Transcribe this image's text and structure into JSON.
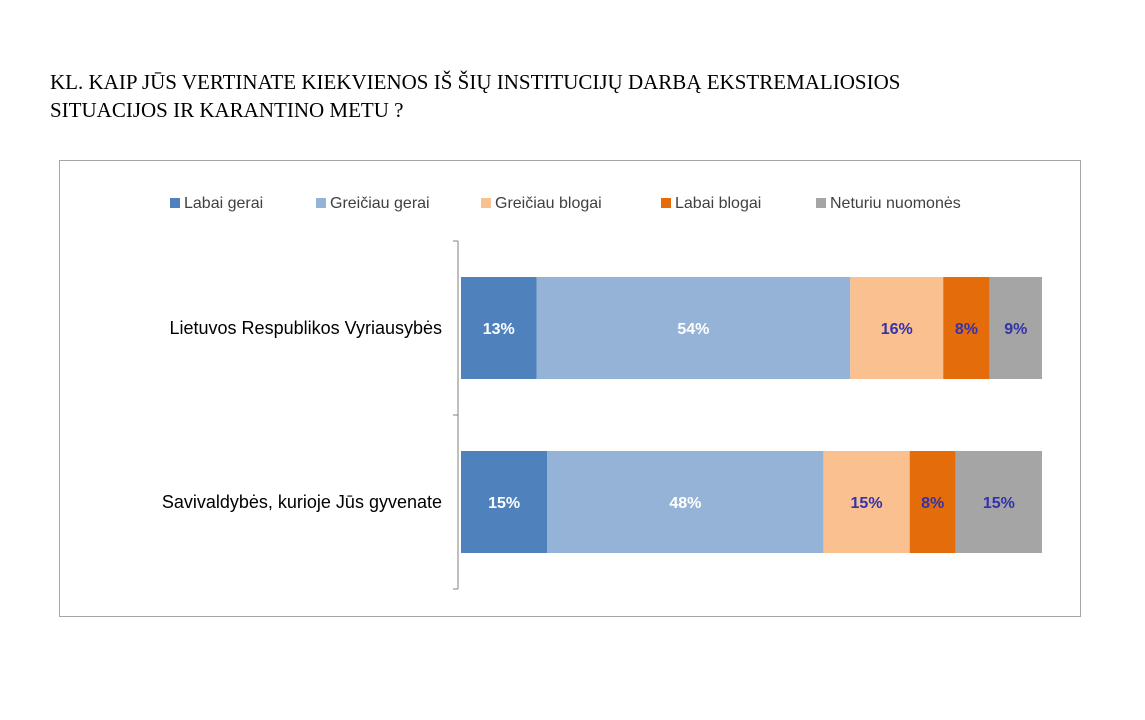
{
  "question": {
    "line1": "KL. KAIP JŪS VERTINATE KIEKVIENOS IŠ ŠIŲ INSTITUCIJŲ DARBĄ EKSTREMALIOSIOS",
    "line2": "SITUACIJOS IR KARANTINO METU ?"
  },
  "chart_data": {
    "type": "bar",
    "orientation": "horizontal",
    "stacked": "100%",
    "categories": [
      "Lietuvos Respublikos Vyriausybės",
      "Savivaldybės, kurioje Jūs gyvenate"
    ],
    "series": [
      {
        "name": "Labai gerai",
        "color": "#4f81bd",
        "label_color": "#ffffff",
        "values": [
          13,
          15
        ],
        "labels": [
          "13%",
          "15%"
        ]
      },
      {
        "name": "Greičiau gerai",
        "color": "#95b3d7",
        "label_color": "#ffffff",
        "values": [
          54,
          48
        ],
        "labels": [
          "54%",
          "48%"
        ]
      },
      {
        "name": "Greičiau blogai",
        "color": "#fac090",
        "label_color": "#3333aa",
        "values": [
          16,
          15
        ],
        "labels": [
          "16%",
          "15%"
        ]
      },
      {
        "name": "Labai blogai",
        "color": "#e46c0a",
        "label_color": "#3333aa",
        "values": [
          8,
          8
        ],
        "labels": [
          "8%",
          "8%"
        ]
      },
      {
        "name": "Neturiu nuomonės",
        "color": "#a5a5a5",
        "label_color": "#3333aa",
        "values": [
          9,
          15
        ],
        "labels": [
          "9%",
          "15%"
        ]
      }
    ],
    "legend_position": "top",
    "grid": false,
    "xlim": [
      0,
      100
    ]
  }
}
